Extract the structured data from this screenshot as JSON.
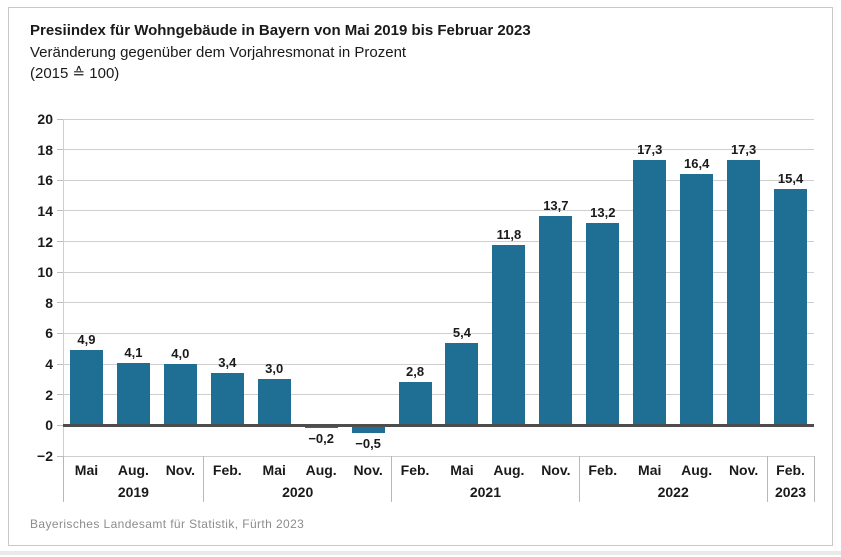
{
  "header": {
    "title": "Presiindex für Wohngebäude in Bayern von Mai 2019 bis Februar 2023",
    "subtitle": "Veränderung gegenüber dem Vorjahresmonat in Prozent",
    "base_note": "(2015 ≙ 100)"
  },
  "chart_data": {
    "type": "bar",
    "title": "Presiindex für Wohngebäude in Bayern von Mai 2019 bis Februar 2023",
    "xlabel": "",
    "ylabel": "",
    "ylim": [
      -2,
      20
    ],
    "ytick_step": 2,
    "yticks": [
      "20",
      "18",
      "16",
      "14",
      "12",
      "10",
      "8",
      "6",
      "4",
      "2",
      "0",
      "−2"
    ],
    "grid": "horizontal",
    "legend": "none",
    "bar_color": "#1f6f94",
    "groups": [
      {
        "year": "2019",
        "months": [
          "Mai",
          "Aug.",
          "Nov."
        ],
        "values": [
          4.9,
          4.1,
          4.0
        ],
        "labels": [
          "4,9",
          "4,1",
          "4,0"
        ]
      },
      {
        "year": "2020",
        "months": [
          "Feb.",
          "Mai",
          "Aug.",
          "Nov."
        ],
        "values": [
          3.4,
          3.0,
          -0.2,
          -0.5
        ],
        "labels": [
          "3,4",
          "3,0",
          "−0,2",
          "−0,5"
        ]
      },
      {
        "year": "2021",
        "months": [
          "Feb.",
          "Mai",
          "Aug.",
          "Nov."
        ],
        "values": [
          2.8,
          5.4,
          11.8,
          13.7
        ],
        "labels": [
          "2,8",
          "5,4",
          "11,8",
          "13,7"
        ]
      },
      {
        "year": "2022",
        "months": [
          "Feb.",
          "Mai",
          "Aug.",
          "Nov."
        ],
        "values": [
          13.2,
          17.3,
          16.4,
          17.3
        ],
        "labels": [
          "13,2",
          "17,3",
          "16,4",
          "17,3"
        ]
      },
      {
        "year": "2023",
        "months": [
          "Feb."
        ],
        "values": [
          15.4
        ],
        "labels": [
          "15,4"
        ]
      }
    ]
  },
  "footer": {
    "source": "Bayerisches Landesamt für Statistik, Fürth 2023"
  }
}
